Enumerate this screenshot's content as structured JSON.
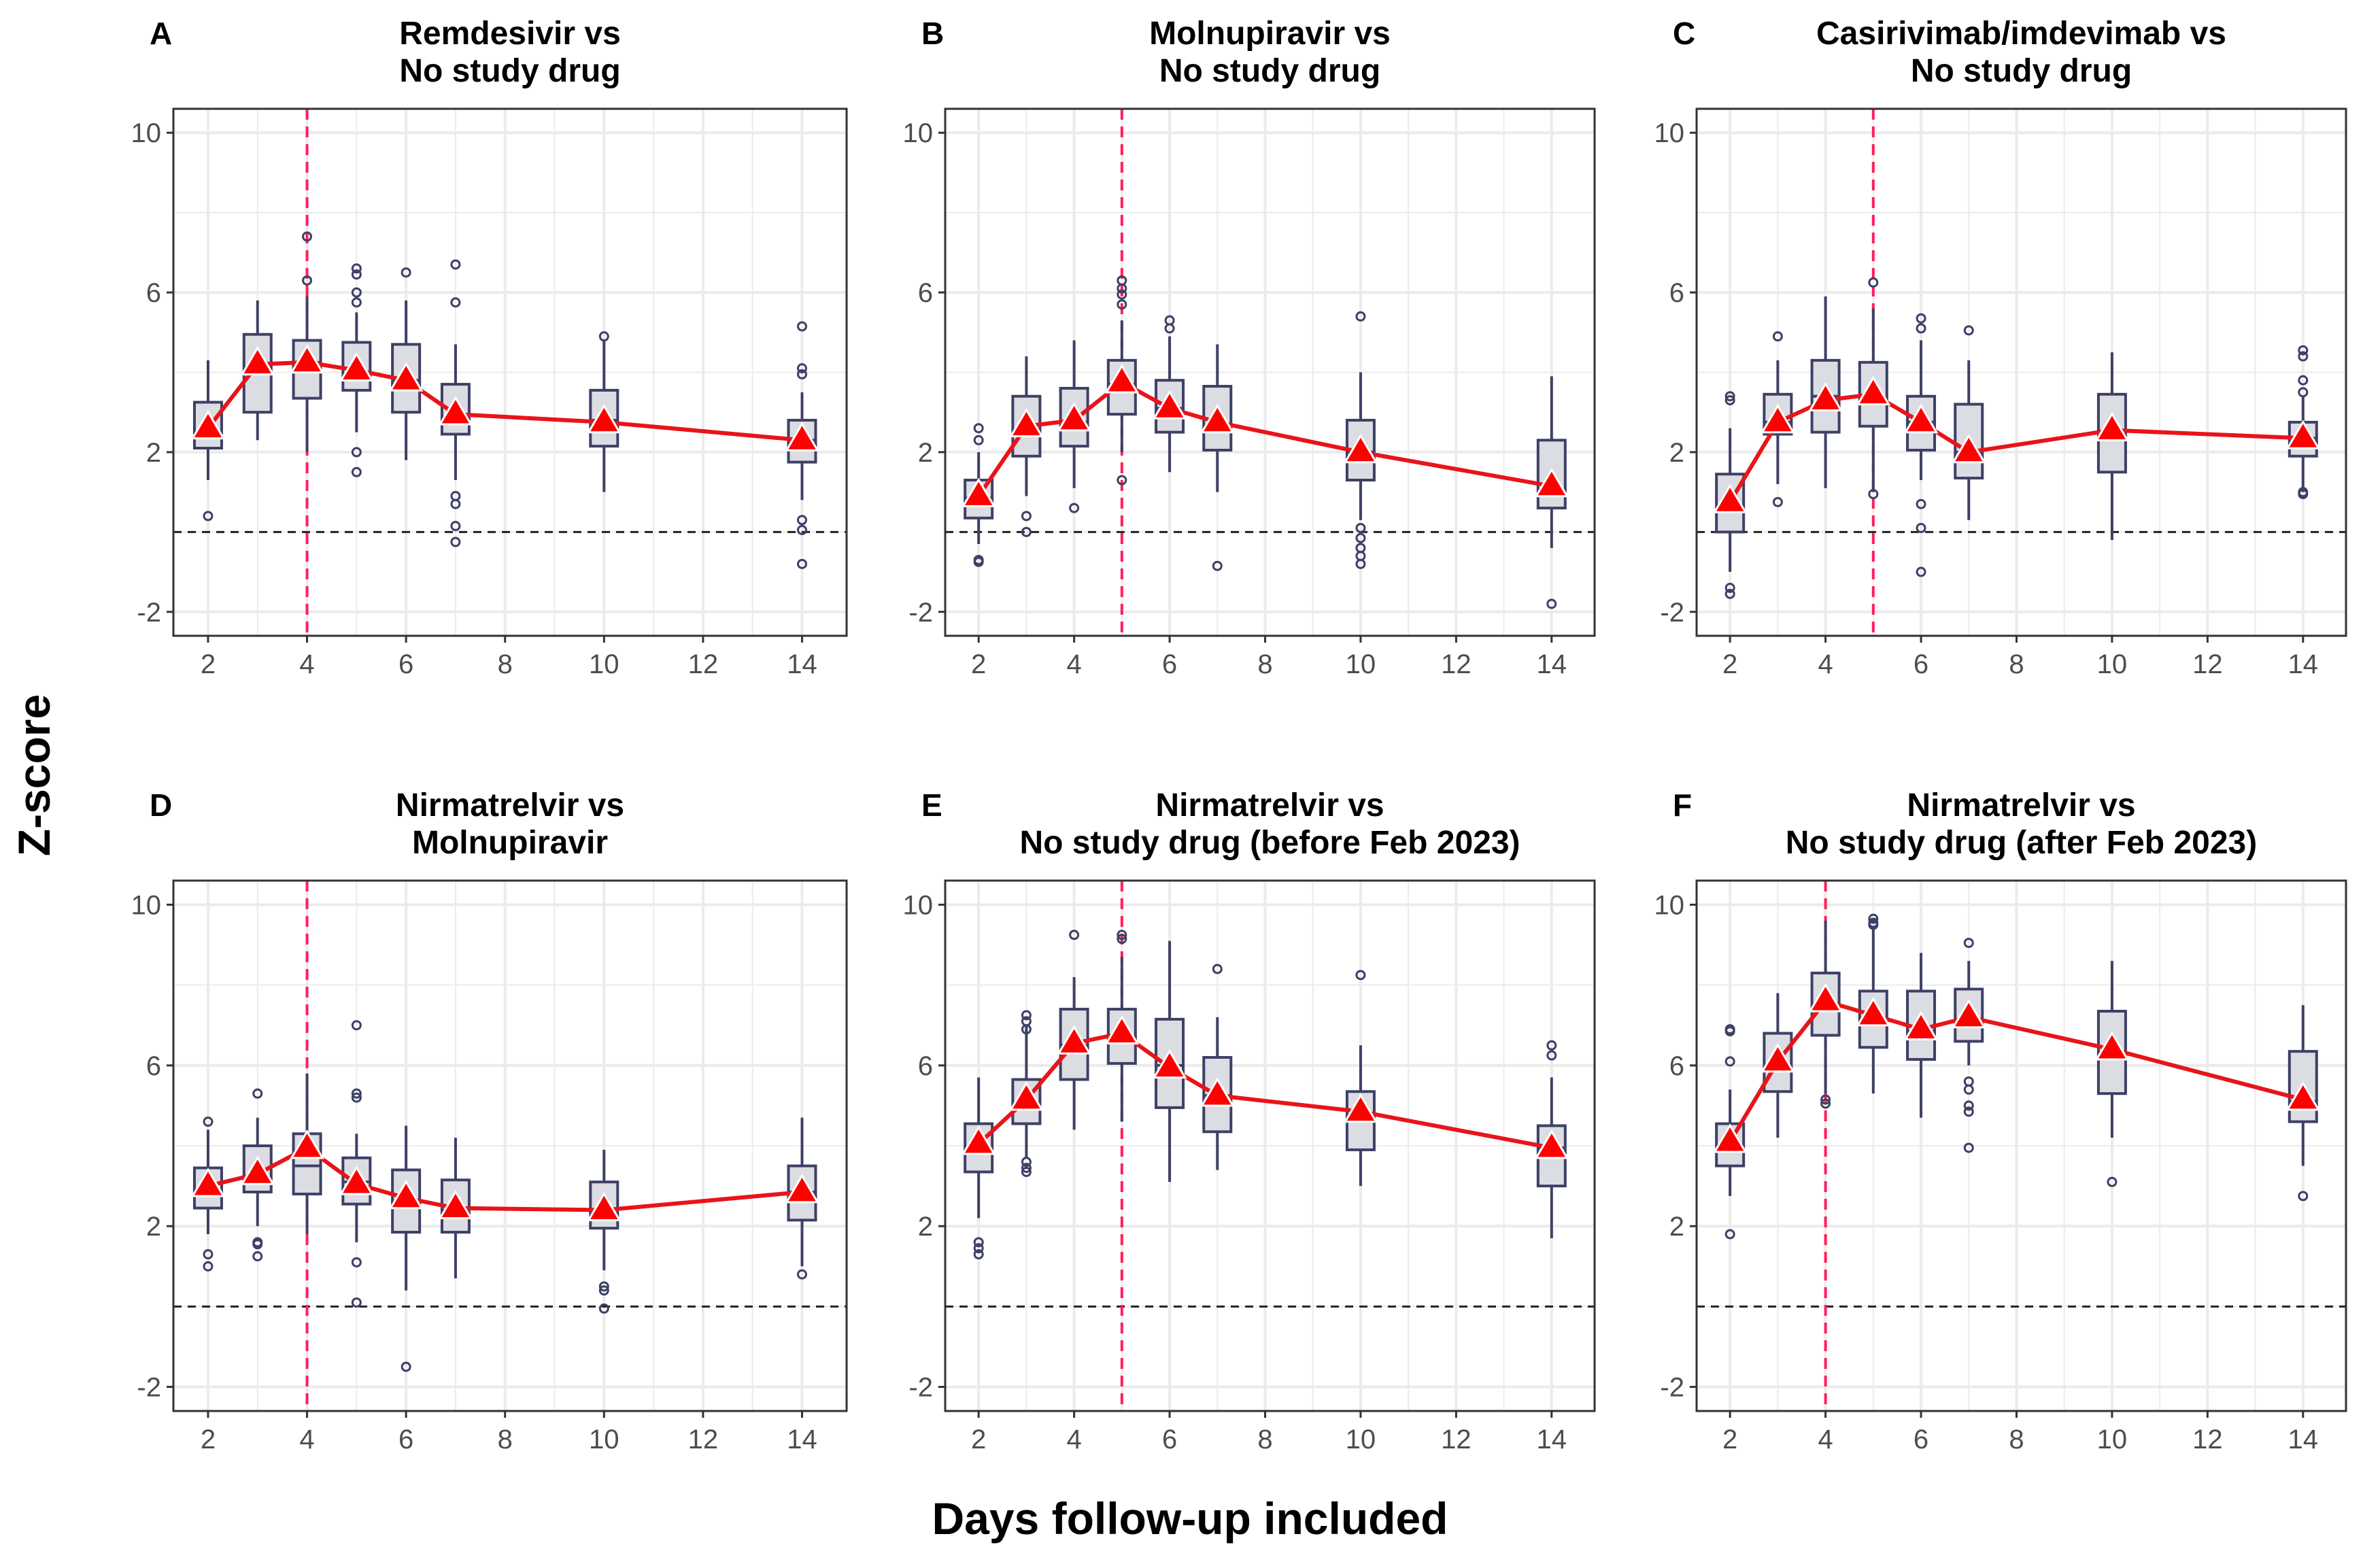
{
  "figure": {
    "ylabel": "Z-score",
    "xlabel": "Days follow-up included"
  },
  "style": {
    "box_fill": "#dcdce3",
    "box_stroke": "#3d4066",
    "median_line": "#e8141a",
    "marker_fill": "#ff0000",
    "cutoff_line": "#ff1f5b",
    "zero_line": "#222222",
    "grid": "#ebebeb"
  },
  "chart_data": [
    {
      "type": "box",
      "letter": "A",
      "title_lines": [
        "Remdesivir vs",
        "No study drug"
      ],
      "xlim": [
        1.3,
        14.9
      ],
      "ylim": [
        -2.6,
        10.6
      ],
      "xticks": [
        2,
        4,
        6,
        8,
        10,
        12,
        14
      ],
      "yticks": [
        -2,
        2,
        6,
        10
      ],
      "vline": 4,
      "series": [
        {
          "x": 2,
          "q1": 2.1,
          "median": 2.45,
          "q3": 3.25,
          "lo": 1.3,
          "hi": 4.3,
          "outliers": [
            0.4
          ],
          "marker": 2.6
        },
        {
          "x": 3,
          "q1": 3.0,
          "median": 4.1,
          "q3": 4.95,
          "lo": 2.3,
          "hi": 5.8,
          "outliers": [],
          "marker": 4.2
        },
        {
          "x": 4,
          "q1": 3.35,
          "median": 4.25,
          "q3": 4.8,
          "lo": 2.0,
          "hi": 5.9,
          "outliers": [
            6.3,
            7.4
          ],
          "marker": 4.25
        },
        {
          "x": 5,
          "q1": 3.55,
          "median": 3.9,
          "q3": 4.75,
          "lo": 2.5,
          "hi": 5.5,
          "outliers": [
            6.6,
            6.45,
            6.0,
            5.75,
            2.0,
            1.5
          ],
          "marker": 4.05
        },
        {
          "x": 6,
          "q1": 3.0,
          "median": 3.8,
          "q3": 4.7,
          "lo": 1.8,
          "hi": 5.8,
          "outliers": [
            6.5
          ],
          "marker": 3.8
        },
        {
          "x": 7,
          "q1": 2.45,
          "median": 2.8,
          "q3": 3.7,
          "lo": 1.3,
          "hi": 4.7,
          "outliers": [
            6.7,
            5.75,
            0.9,
            0.7,
            0.15,
            -0.25
          ],
          "marker": 2.95
        },
        {
          "x": 10,
          "q1": 2.15,
          "median": 2.8,
          "q3": 3.55,
          "lo": 1.0,
          "hi": 4.8,
          "outliers": [
            4.9
          ],
          "marker": 2.75
        },
        {
          "x": 14,
          "q1": 1.75,
          "median": 2.3,
          "q3": 2.8,
          "lo": 0.8,
          "hi": 3.5,
          "outliers": [
            5.15,
            4.1,
            3.95,
            0.3,
            0.05,
            -0.8
          ],
          "marker": 2.3
        }
      ]
    },
    {
      "type": "box",
      "letter": "B",
      "title_lines": [
        "Molnupiravir vs",
        "No study drug"
      ],
      "xlim": [
        1.3,
        14.9
      ],
      "ylim": [
        -2.6,
        10.6
      ],
      "xticks": [
        2,
        4,
        6,
        8,
        10,
        12,
        14
      ],
      "yticks": [
        -2,
        2,
        6,
        10
      ],
      "vline": 5,
      "series": [
        {
          "x": 2,
          "q1": 0.35,
          "median": 0.85,
          "q3": 1.3,
          "lo": -0.3,
          "hi": 2.0,
          "outliers": [
            2.6,
            2.3,
            -0.7,
            -0.75
          ],
          "marker": 0.9
        },
        {
          "x": 3,
          "q1": 1.9,
          "median": 2.55,
          "q3": 3.4,
          "lo": 0.9,
          "hi": 4.4,
          "outliers": [
            0.4,
            0.0
          ],
          "marker": 2.65
        },
        {
          "x": 4,
          "q1": 2.15,
          "median": 2.75,
          "q3": 3.6,
          "lo": 1.1,
          "hi": 4.8,
          "outliers": [
            0.6
          ],
          "marker": 2.8
        },
        {
          "x": 5,
          "q1": 2.95,
          "median": 3.7,
          "q3": 4.3,
          "lo": 2.0,
          "hi": 5.3,
          "outliers": [
            6.3,
            6.1,
            5.95,
            5.7,
            1.3
          ],
          "marker": 3.75
        },
        {
          "x": 6,
          "q1": 2.5,
          "median": 3.1,
          "q3": 3.8,
          "lo": 1.5,
          "hi": 4.9,
          "outliers": [
            5.3,
            5.1
          ],
          "marker": 3.1
        },
        {
          "x": 7,
          "q1": 2.05,
          "median": 2.6,
          "q3": 3.65,
          "lo": 1.0,
          "hi": 4.7,
          "outliers": [
            -0.85
          ],
          "marker": 2.75
        },
        {
          "x": 10,
          "q1": 1.3,
          "median": 2.0,
          "q3": 2.8,
          "lo": 0.3,
          "hi": 4.0,
          "outliers": [
            5.4,
            0.1,
            -0.15,
            -0.4,
            -0.6,
            -0.8
          ],
          "marker": 2.0
        },
        {
          "x": 14,
          "q1": 0.6,
          "median": 1.05,
          "q3": 2.3,
          "lo": -0.4,
          "hi": 3.9,
          "outliers": [
            -1.8
          ],
          "marker": 1.15
        }
      ]
    },
    {
      "type": "box",
      "letter": "C",
      "title_lines": [
        "Casirivimab/imdevimab vs",
        "No study drug"
      ],
      "xlim": [
        1.3,
        14.9
      ],
      "ylim": [
        -2.6,
        10.6
      ],
      "xticks": [
        2,
        4,
        6,
        8,
        10,
        12,
        14
      ],
      "yticks": [
        -2,
        2,
        6,
        10
      ],
      "vline": 5,
      "series": [
        {
          "x": 2,
          "q1": 0.0,
          "median": 0.6,
          "q3": 1.45,
          "lo": -1.0,
          "hi": 2.6,
          "outliers": [
            3.4,
            3.3,
            -1.4,
            -1.55
          ],
          "marker": 0.75
        },
        {
          "x": 3,
          "q1": 2.45,
          "median": 2.75,
          "q3": 3.45,
          "lo": 1.2,
          "hi": 4.3,
          "outliers": [
            4.9,
            0.75
          ],
          "marker": 2.75
        },
        {
          "x": 4,
          "q1": 2.5,
          "median": 3.4,
          "q3": 4.3,
          "lo": 1.1,
          "hi": 5.9,
          "outliers": [],
          "marker": 3.3
        },
        {
          "x": 5,
          "q1": 2.65,
          "median": 3.3,
          "q3": 4.25,
          "lo": 1.0,
          "hi": 5.6,
          "outliers": [
            6.25,
            0.95
          ],
          "marker": 3.45
        },
        {
          "x": 6,
          "q1": 2.05,
          "median": 2.75,
          "q3": 3.4,
          "lo": 1.3,
          "hi": 4.8,
          "outliers": [
            5.35,
            5.1,
            0.7,
            0.1,
            -1.0
          ],
          "marker": 2.75
        },
        {
          "x": 7,
          "q1": 1.35,
          "median": 2.0,
          "q3": 3.2,
          "lo": 0.3,
          "hi": 4.3,
          "outliers": [
            5.05
          ],
          "marker": 2.0
        },
        {
          "x": 10,
          "q1": 1.5,
          "median": 2.5,
          "q3": 3.45,
          "lo": -0.2,
          "hi": 4.5,
          "outliers": [],
          "marker": 2.55
        },
        {
          "x": 14,
          "q1": 1.9,
          "median": 2.35,
          "q3": 2.75,
          "lo": 1.0,
          "hi": 3.4,
          "outliers": [
            4.55,
            4.4,
            3.8,
            3.5,
            1.0,
            0.95
          ],
          "marker": 2.35
        }
      ]
    },
    {
      "type": "box",
      "letter": "D",
      "title_lines": [
        "Nirmatrelvir vs",
        "Molnupiravir"
      ],
      "xlim": [
        1.3,
        14.9
      ],
      "ylim": [
        -2.6,
        10.6
      ],
      "xticks": [
        2,
        4,
        6,
        8,
        10,
        12,
        14
      ],
      "yticks": [
        -2,
        2,
        6,
        10
      ],
      "vline": 4,
      "series": [
        {
          "x": 2,
          "q1": 2.45,
          "median": 2.9,
          "q3": 3.45,
          "lo": 1.8,
          "hi": 4.4,
          "outliers": [
            4.6,
            1.3,
            1.0
          ],
          "marker": 3.0
        },
        {
          "x": 3,
          "q1": 2.85,
          "median": 3.2,
          "q3": 4.0,
          "lo": 2.0,
          "hi": 4.7,
          "outliers": [
            5.3,
            1.6,
            1.55,
            1.25
          ],
          "marker": 3.3
        },
        {
          "x": 4,
          "q1": 2.8,
          "median": 3.5,
          "q3": 4.3,
          "lo": 1.8,
          "hi": 5.8,
          "outliers": [],
          "marker": 3.95
        },
        {
          "x": 5,
          "q1": 2.55,
          "median": 3.1,
          "q3": 3.7,
          "lo": 1.6,
          "hi": 4.3,
          "outliers": [
            7.0,
            5.3,
            5.2,
            1.1,
            0.1
          ],
          "marker": 3.05
        },
        {
          "x": 6,
          "q1": 1.85,
          "median": 2.6,
          "q3": 3.4,
          "lo": 0.4,
          "hi": 4.5,
          "outliers": [
            -1.5
          ],
          "marker": 2.7
        },
        {
          "x": 7,
          "q1": 1.85,
          "median": 2.4,
          "q3": 3.15,
          "lo": 0.7,
          "hi": 4.2,
          "outliers": [],
          "marker": 2.45
        },
        {
          "x": 10,
          "q1": 1.95,
          "median": 2.3,
          "q3": 3.1,
          "lo": 0.9,
          "hi": 3.9,
          "outliers": [
            0.5,
            0.4,
            -0.05
          ],
          "marker": 2.4
        },
        {
          "x": 14,
          "q1": 2.15,
          "median": 2.85,
          "q3": 3.5,
          "lo": 1.0,
          "hi": 4.7,
          "outliers": [
            0.8
          ],
          "marker": 2.85
        }
      ]
    },
    {
      "type": "box",
      "letter": "E",
      "title_lines": [
        "Nirmatrelvir vs",
        "No study drug (before Feb 2023)"
      ],
      "xlim": [
        1.3,
        14.9
      ],
      "ylim": [
        -2.6,
        10.6
      ],
      "xticks": [
        2,
        4,
        6,
        8,
        10,
        12,
        14
      ],
      "yticks": [
        -2,
        2,
        6,
        10
      ],
      "vline": 5,
      "series": [
        {
          "x": 2,
          "q1": 3.35,
          "median": 3.95,
          "q3": 4.55,
          "lo": 2.2,
          "hi": 5.7,
          "outliers": [
            1.6,
            1.45,
            1.3
          ],
          "marker": 4.05
        },
        {
          "x": 3,
          "q1": 4.55,
          "median": 5.0,
          "q3": 5.65,
          "lo": 3.7,
          "hi": 7.0,
          "outliers": [
            7.25,
            7.1,
            6.9,
            3.6,
            3.45,
            3.35
          ],
          "marker": 5.15
        },
        {
          "x": 4,
          "q1": 5.65,
          "median": 6.5,
          "q3": 7.4,
          "lo": 4.4,
          "hi": 8.2,
          "outliers": [
            9.25
          ],
          "marker": 6.55
        },
        {
          "x": 5,
          "q1": 6.05,
          "median": 6.7,
          "q3": 7.4,
          "lo": 4.6,
          "hi": 8.7,
          "outliers": [
            9.25,
            9.15
          ],
          "marker": 6.8
        },
        {
          "x": 6,
          "q1": 4.95,
          "median": 6.0,
          "q3": 7.15,
          "lo": 3.1,
          "hi": 9.1,
          "outliers": [],
          "marker": 5.95
        },
        {
          "x": 7,
          "q1": 4.35,
          "median": 5.25,
          "q3": 6.2,
          "lo": 3.4,
          "hi": 7.2,
          "outliers": [
            8.4
          ],
          "marker": 5.25
        },
        {
          "x": 10,
          "q1": 3.9,
          "median": 4.7,
          "q3": 5.35,
          "lo": 3.0,
          "hi": 6.5,
          "outliers": [
            8.25
          ],
          "marker": 4.85
        },
        {
          "x": 14,
          "q1": 3.0,
          "median": 3.95,
          "q3": 4.5,
          "lo": 1.7,
          "hi": 5.7,
          "outliers": [
            6.5,
            6.25
          ],
          "marker": 3.95
        }
      ]
    },
    {
      "type": "box",
      "letter": "F",
      "title_lines": [
        "Nirmatrelvir vs",
        "No study drug (after Feb 2023)"
      ],
      "xlim": [
        1.3,
        14.9
      ],
      "ylim": [
        -2.6,
        10.6
      ],
      "xticks": [
        2,
        4,
        6,
        8,
        10,
        12,
        14
      ],
      "yticks": [
        -2,
        2,
        6,
        10
      ],
      "vline": 4,
      "series": [
        {
          "x": 2,
          "q1": 3.5,
          "median": 3.9,
          "q3": 4.55,
          "lo": 2.75,
          "hi": 5.4,
          "outliers": [
            6.9,
            6.85,
            6.1,
            1.8
          ],
          "marker": 4.1
        },
        {
          "x": 3,
          "q1": 5.35,
          "median": 6.0,
          "q3": 6.8,
          "lo": 4.2,
          "hi": 7.8,
          "outliers": [],
          "marker": 6.1
        },
        {
          "x": 4,
          "q1": 6.75,
          "median": 7.4,
          "q3": 8.3,
          "lo": 5.3,
          "hi": 9.6,
          "outliers": [
            5.15,
            5.05
          ],
          "marker": 7.6
        },
        {
          "x": 5,
          "q1": 6.45,
          "median": 7.1,
          "q3": 7.85,
          "lo": 5.3,
          "hi": 9.4,
          "outliers": [
            9.65,
            9.55,
            9.5
          ],
          "marker": 7.25
        },
        {
          "x": 6,
          "q1": 6.15,
          "median": 6.85,
          "q3": 7.85,
          "lo": 4.7,
          "hi": 8.8,
          "outliers": [],
          "marker": 6.9
        },
        {
          "x": 7,
          "q1": 6.6,
          "median": 7.0,
          "q3": 7.9,
          "lo": 6.0,
          "hi": 8.6,
          "outliers": [
            9.05,
            5.6,
            5.4,
            5.0,
            4.85,
            3.95
          ],
          "marker": 7.2
        },
        {
          "x": 10,
          "q1": 5.3,
          "median": 6.3,
          "q3": 7.35,
          "lo": 4.2,
          "hi": 8.6,
          "outliers": [
            3.1
          ],
          "marker": 6.4
        },
        {
          "x": 14,
          "q1": 4.6,
          "median": 5.1,
          "q3": 6.35,
          "lo": 3.5,
          "hi": 7.5,
          "outliers": [
            2.75
          ],
          "marker": 5.15
        }
      ]
    }
  ]
}
